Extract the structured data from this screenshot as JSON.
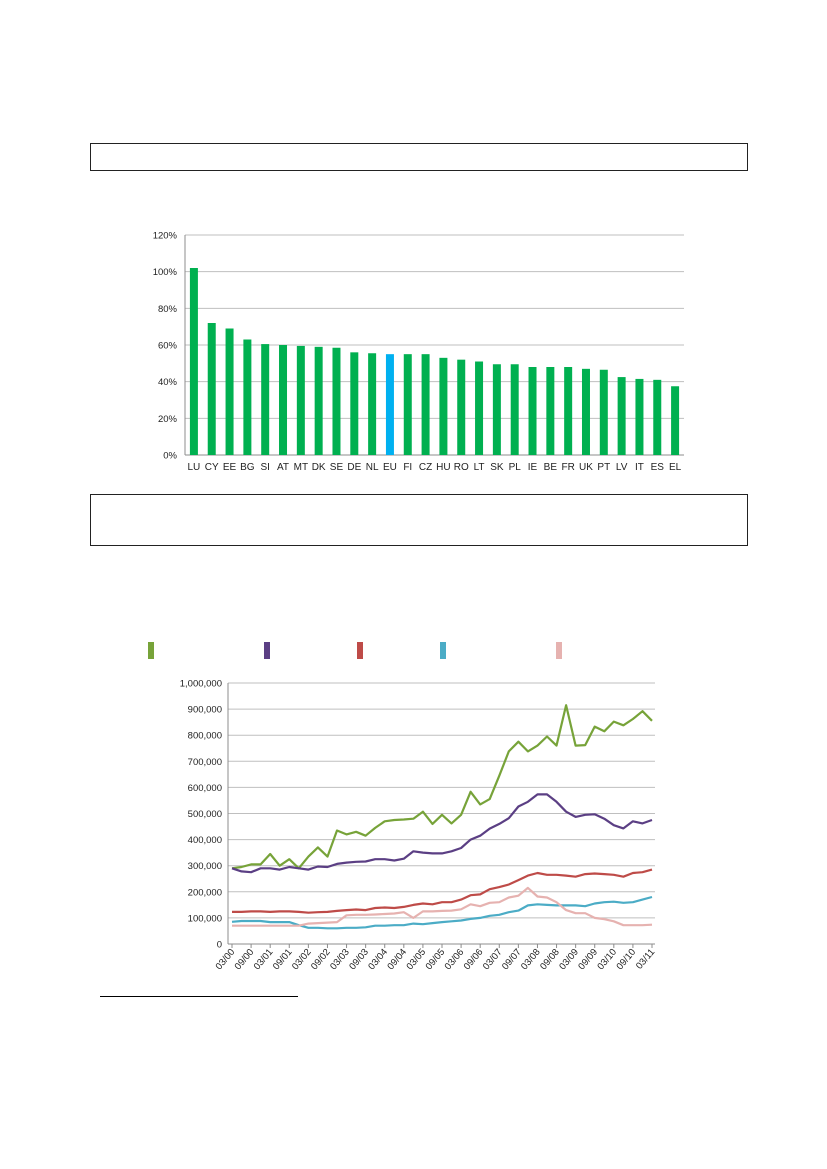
{
  "chart_data": [
    {
      "type": "bar",
      "categories": [
        "LU",
        "CY",
        "EE",
        "BG",
        "SI",
        "AT",
        "MT",
        "DK",
        "SE",
        "DE",
        "NL",
        "EU",
        "FI",
        "CZ",
        "HU",
        "RO",
        "LT",
        "SK",
        "PL",
        "IE",
        "BE",
        "FR",
        "UK",
        "PT",
        "LV",
        "IT",
        "ES",
        "EL"
      ],
      "values": [
        102,
        72,
        69,
        63,
        60.5,
        60,
        59.5,
        59,
        58.5,
        56,
        55.5,
        55,
        55,
        55,
        53,
        52,
        51,
        49.5,
        49.5,
        48,
        48,
        48,
        47,
        46.5,
        42.5,
        41.5,
        41,
        37.5
      ],
      "highlight": "EU",
      "colors": {
        "bar": "#00b050",
        "highlight": "#00b0f0"
      },
      "ylim": [
        0,
        120
      ],
      "yticks": [
        "0%",
        "20%",
        "40%",
        "60%",
        "80%",
        "100%",
        "120%"
      ],
      "grid": true
    },
    {
      "type": "line",
      "x": [
        "03/00",
        "06/00",
        "09/00",
        "12/00",
        "03/01",
        "06/01",
        "09/01",
        "12/01",
        "03/02",
        "06/02",
        "09/02",
        "12/02",
        "03/03",
        "06/03",
        "09/03",
        "12/03",
        "03/04",
        "06/04",
        "09/04",
        "12/04",
        "03/05",
        "06/05",
        "09/05",
        "12/05",
        "03/06",
        "06/06",
        "09/06",
        "12/06",
        "03/07",
        "06/07",
        "09/07",
        "12/07",
        "03/08",
        "06/08",
        "09/08",
        "12/08",
        "03/09",
        "06/09",
        "09/09",
        "12/09",
        "03/10",
        "06/10",
        "09/10",
        "12/10",
        "03/11"
      ],
      "xticks": [
        "03/00",
        "09/00",
        "03/01",
        "09/01",
        "03/02",
        "09/02",
        "03/03",
        "09/03",
        "03/04",
        "09/04",
        "03/05",
        "09/05",
        "03/06",
        "09/06",
        "03/07",
        "09/07",
        "03/08",
        "09/08",
        "03/09",
        "09/09",
        "03/10",
        "09/10",
        "03/11"
      ],
      "ylim": [
        0,
        1000000
      ],
      "yticks": [
        "0",
        "100,000",
        "200,000",
        "300,000",
        "400,000",
        "500,000",
        "600,000",
        "700,000",
        "800,000",
        "900,000",
        "1,000,000"
      ],
      "grid": true,
      "legend_position": "top",
      "series": [
        {
          "color": "#77a339",
          "values": [
            290000,
            295000,
            305000,
            305000,
            345000,
            300000,
            325000,
            290000,
            335000,
            370000,
            335000,
            435000,
            420000,
            430000,
            415000,
            445000,
            470000,
            475000,
            477000,
            480000,
            507000,
            460000,
            495000,
            462000,
            495000,
            583000,
            535000,
            555000,
            645000,
            738000,
            775000,
            738000,
            760000,
            795000,
            760000,
            915000,
            760000,
            762000,
            833000,
            815000,
            852000,
            838000,
            862000,
            892000,
            855000
          ]
        },
        {
          "color": "#5b3f84",
          "values": [
            290000,
            278000,
            275000,
            290000,
            290000,
            285000,
            295000,
            290000,
            285000,
            297000,
            295000,
            307000,
            312000,
            315000,
            316000,
            325000,
            325000,
            320000,
            327000,
            355000,
            350000,
            347000,
            347000,
            355000,
            368000,
            400000,
            415000,
            442000,
            460000,
            482000,
            527000,
            545000,
            573000,
            573000,
            545000,
            507000,
            487000,
            495000,
            497000,
            480000,
            455000,
            443000,
            470000,
            462000,
            475000
          ]
        },
        {
          "color": "#be4b48",
          "values": [
            123000,
            123000,
            125000,
            125000,
            123000,
            125000,
            125000,
            123000,
            120000,
            122000,
            123000,
            127000,
            130000,
            132000,
            130000,
            138000,
            140000,
            138000,
            142000,
            150000,
            155000,
            152000,
            160000,
            160000,
            170000,
            187000,
            190000,
            210000,
            218000,
            228000,
            245000,
            262000,
            272000,
            265000,
            265000,
            262000,
            258000,
            268000,
            270000,
            268000,
            265000,
            258000,
            272000,
            275000,
            285000
          ]
        },
        {
          "color": "#4bacc6",
          "values": [
            85000,
            88000,
            88000,
            88000,
            84000,
            84000,
            84000,
            72000,
            62000,
            62000,
            60000,
            60000,
            62000,
            62000,
            64000,
            70000,
            70000,
            72000,
            72000,
            78000,
            76000,
            80000,
            84000,
            87000,
            90000,
            96000,
            100000,
            108000,
            112000,
            122000,
            128000,
            148000,
            152000,
            150000,
            148000,
            148000,
            148000,
            145000,
            155000,
            160000,
            162000,
            158000,
            160000,
            170000,
            180000
          ]
        },
        {
          "color": "#e6b2b0",
          "values": [
            70000,
            70000,
            70000,
            70000,
            70000,
            70000,
            70000,
            70000,
            78000,
            80000,
            82000,
            84000,
            110000,
            112000,
            112000,
            113000,
            115000,
            117000,
            122000,
            100000,
            125000,
            125000,
            127000,
            128000,
            133000,
            152000,
            145000,
            158000,
            160000,
            178000,
            185000,
            215000,
            182000,
            178000,
            160000,
            130000,
            118000,
            118000,
            100000,
            95000,
            87000,
            72000,
            72000,
            72000,
            74000
          ]
        }
      ]
    }
  ]
}
